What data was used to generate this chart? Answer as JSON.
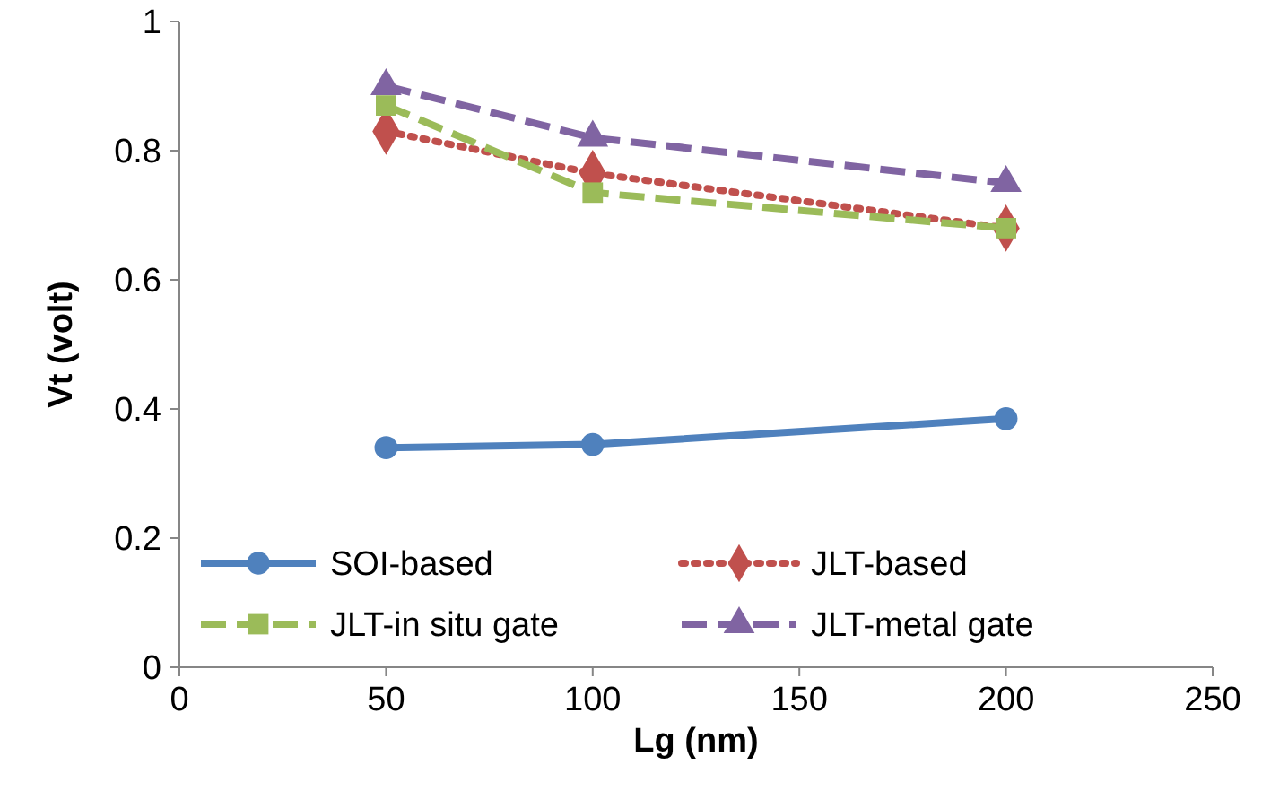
{
  "chart_data": {
    "type": "line",
    "xlabel": "Lg (nm)",
    "ylabel": "Vt (volt)",
    "x": [
      50,
      100,
      200
    ],
    "xlim": [
      0,
      250
    ],
    "xticks": [
      0,
      50,
      100,
      150,
      200,
      250
    ],
    "ylim": [
      0,
      1
    ],
    "yticks": [
      0,
      0.2,
      0.4,
      0.6,
      0.8,
      1
    ],
    "legend": "bottom",
    "series": [
      {
        "name": "SOI-based",
        "color": "#4f81bd",
        "marker": "circle",
        "line_style": "solid",
        "values": [
          0.34,
          0.345,
          0.385
        ]
      },
      {
        "name": "JLT-based",
        "color": "#c0504d",
        "marker": "diamond",
        "line_style": "dotted",
        "values": [
          0.83,
          0.765,
          0.68
        ]
      },
      {
        "name": "JLT-in situ gate",
        "color": "#9bbb59",
        "marker": "square",
        "line_style": "dashed",
        "values": [
          0.87,
          0.735,
          0.68
        ]
      },
      {
        "name": "JLT-metal gate",
        "color": "#8064a2",
        "marker": "triangle",
        "line_style": "dashed",
        "values": [
          0.9,
          0.82,
          0.75
        ]
      }
    ]
  }
}
